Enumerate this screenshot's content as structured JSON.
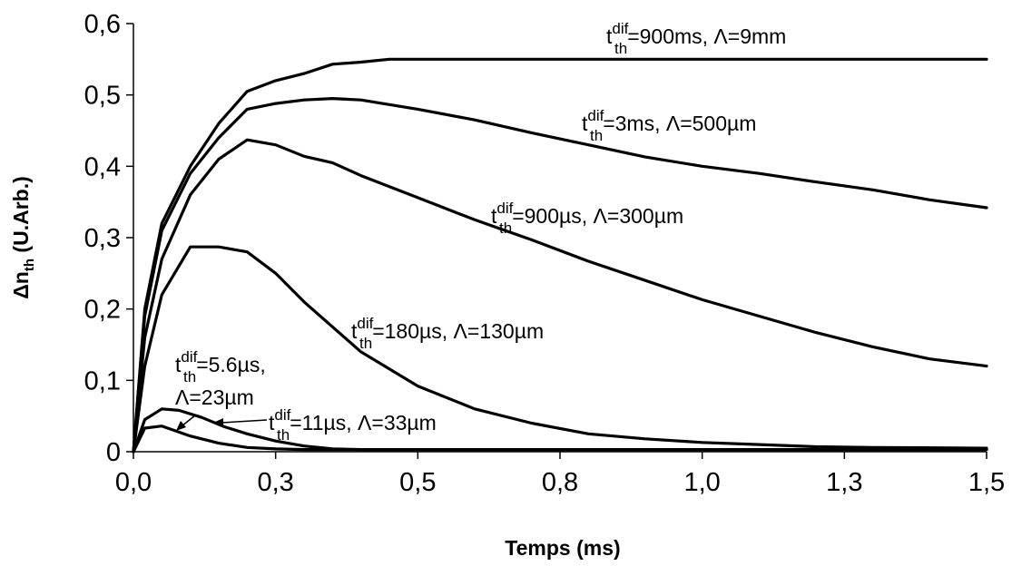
{
  "chart_data": {
    "type": "line",
    "xlabel": "Temps (ms)",
    "ylabel": {
      "main": "Δn",
      "sub": "th",
      "suffix": " (U.Arb.)"
    },
    "xlim": [
      0,
      1.5
    ],
    "ylim": [
      0,
      0.6
    ],
    "xticks": [
      {
        "value": 0.0,
        "label": "0,0"
      },
      {
        "value": 0.25,
        "label": "0,3"
      },
      {
        "value": 0.5,
        "label": "0,5"
      },
      {
        "value": 0.75,
        "label": "0,8"
      },
      {
        "value": 1.0,
        "label": "1,0"
      },
      {
        "value": 1.25,
        "label": "1,3"
      },
      {
        "value": 1.5,
        "label": "1,5"
      }
    ],
    "yticks": [
      {
        "value": 0.0,
        "label": "0"
      },
      {
        "value": 0.1,
        "label": "0,1"
      },
      {
        "value": 0.2,
        "label": "0,2"
      },
      {
        "value": 0.3,
        "label": "0,3"
      },
      {
        "value": 0.4,
        "label": "0,4"
      },
      {
        "value": 0.5,
        "label": "0,5"
      },
      {
        "value": 0.6,
        "label": "0,6"
      }
    ],
    "grid": false,
    "legend": "none",
    "series": [
      {
        "values": [
          [
            0,
            0
          ],
          [
            0.02,
            0.2
          ],
          [
            0.05,
            0.32
          ],
          [
            0.1,
            0.4
          ],
          [
            0.15,
            0.46
          ],
          [
            0.2,
            0.505
          ],
          [
            0.25,
            0.52
          ],
          [
            0.3,
            0.53
          ],
          [
            0.35,
            0.543
          ],
          [
            0.4,
            0.546
          ],
          [
            0.45,
            0.55
          ],
          [
            0.6,
            0.55
          ],
          [
            0.8,
            0.55
          ],
          [
            1.0,
            0.55
          ],
          [
            1.2,
            0.55
          ],
          [
            1.5,
            0.55
          ]
        ]
      },
      {
        "values": [
          [
            0,
            0
          ],
          [
            0.02,
            0.19
          ],
          [
            0.05,
            0.31
          ],
          [
            0.1,
            0.39
          ],
          [
            0.15,
            0.44
          ],
          [
            0.2,
            0.48
          ],
          [
            0.25,
            0.488
          ],
          [
            0.3,
            0.493
          ],
          [
            0.35,
            0.495
          ],
          [
            0.4,
            0.493
          ],
          [
            0.5,
            0.48
          ],
          [
            0.6,
            0.465
          ],
          [
            0.7,
            0.447
          ],
          [
            0.8,
            0.43
          ],
          [
            0.9,
            0.413
          ],
          [
            1.0,
            0.4
          ],
          [
            1.1,
            0.39
          ],
          [
            1.2,
            0.378
          ],
          [
            1.3,
            0.367
          ],
          [
            1.4,
            0.353
          ],
          [
            1.5,
            0.342
          ]
        ]
      },
      {
        "values": [
          [
            0,
            0
          ],
          [
            0.02,
            0.16
          ],
          [
            0.05,
            0.27
          ],
          [
            0.1,
            0.36
          ],
          [
            0.15,
            0.41
          ],
          [
            0.2,
            0.437
          ],
          [
            0.25,
            0.43
          ],
          [
            0.3,
            0.414
          ],
          [
            0.35,
            0.405
          ],
          [
            0.4,
            0.387
          ],
          [
            0.5,
            0.356
          ],
          [
            0.6,
            0.325
          ],
          [
            0.7,
            0.297
          ],
          [
            0.8,
            0.267
          ],
          [
            0.9,
            0.24
          ],
          [
            1.0,
            0.213
          ],
          [
            1.1,
            0.19
          ],
          [
            1.2,
            0.167
          ],
          [
            1.3,
            0.147
          ],
          [
            1.4,
            0.13
          ],
          [
            1.5,
            0.12
          ]
        ]
      },
      {
        "values": [
          [
            0,
            0
          ],
          [
            0.02,
            0.12
          ],
          [
            0.05,
            0.22
          ],
          [
            0.1,
            0.287
          ],
          [
            0.15,
            0.287
          ],
          [
            0.2,
            0.28
          ],
          [
            0.25,
            0.25
          ],
          [
            0.3,
            0.21
          ],
          [
            0.35,
            0.175
          ],
          [
            0.4,
            0.14
          ],
          [
            0.5,
            0.092
          ],
          [
            0.6,
            0.06
          ],
          [
            0.7,
            0.04
          ],
          [
            0.8,
            0.025
          ],
          [
            0.9,
            0.018
          ],
          [
            1.0,
            0.013
          ],
          [
            1.1,
            0.01
          ],
          [
            1.2,
            0.007
          ],
          [
            1.3,
            0.006
          ],
          [
            1.5,
            0.005
          ]
        ]
      },
      {
        "values": [
          [
            0,
            0
          ],
          [
            0.02,
            0.045
          ],
          [
            0.05,
            0.06
          ],
          [
            0.08,
            0.058
          ],
          [
            0.12,
            0.048
          ],
          [
            0.16,
            0.035
          ],
          [
            0.2,
            0.025
          ],
          [
            0.25,
            0.015
          ],
          [
            0.3,
            0.008
          ],
          [
            0.35,
            0.004
          ],
          [
            0.4,
            0.003
          ],
          [
            0.6,
            0.003
          ],
          [
            1.0,
            0.003
          ],
          [
            1.5,
            0.003
          ]
        ]
      },
      {
        "values": [
          [
            0,
            0
          ],
          [
            0.02,
            0.033
          ],
          [
            0.05,
            0.036
          ],
          [
            0.1,
            0.022
          ],
          [
            0.15,
            0.012
          ],
          [
            0.2,
            0.006
          ],
          [
            0.25,
            0.004
          ],
          [
            0.3,
            0.003
          ],
          [
            0.5,
            0.003
          ],
          [
            1.0,
            0.003
          ],
          [
            1.5,
            0.003
          ]
        ]
      }
    ],
    "annotations": [
      {
        "t": "t",
        "sub": "th",
        "sup": "dif",
        "rest": "=900ms, Λ=9mm"
      },
      {
        "t": "t",
        "sub": "th",
        "sup": "dif",
        "rest": "=3ms, Λ=500µm"
      },
      {
        "t": "t",
        "sub": "th",
        "sup": "dif",
        "rest": "=900µs, Λ=300µm"
      },
      {
        "t": "t",
        "sub": "th",
        "sup": "dif",
        "rest": "=180µs, Λ=130µm"
      },
      {
        "t": "t",
        "sub": "th",
        "sup": "dif",
        "rest": "=5.6µs,",
        "line2": "Λ=23µm"
      },
      {
        "t": "t",
        "sub": "th",
        "sup": "dif",
        "rest": "=11µs, Λ=33µm"
      }
    ]
  }
}
